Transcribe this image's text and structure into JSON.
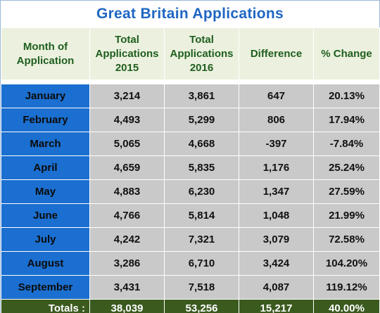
{
  "chart_data": {
    "type": "table",
    "title": "Great Britain Applications",
    "columns": [
      "Month of Application",
      "Total Applications 2015",
      "Total Applications 2016",
      "Difference",
      "% Change"
    ],
    "rows": [
      [
        "January",
        "3,214",
        "3,861",
        "647",
        "20.13%"
      ],
      [
        "February",
        "4,493",
        "5,299",
        "806",
        "17.94%"
      ],
      [
        "March",
        "5,065",
        "4,668",
        "-397",
        "-7.84%"
      ],
      [
        "April",
        "4,659",
        "5,835",
        "1,176",
        "25.24%"
      ],
      [
        "May",
        "4,883",
        "6,230",
        "1,347",
        "27.59%"
      ],
      [
        "June",
        "4,766",
        "5,814",
        "1,048",
        "21.99%"
      ],
      [
        "July",
        "4,242",
        "7,321",
        "3,079",
        "72.58%"
      ],
      [
        "August",
        "3,286",
        "6,710",
        "3,424",
        "104.20%"
      ],
      [
        "September",
        "3,431",
        "7,518",
        "4,087",
        "119.12%"
      ]
    ],
    "totals": [
      "Totals :",
      "38,039",
      "53,256",
      "15,217",
      "40.00%"
    ],
    "colors": {
      "title": "#1f66c2",
      "header_bg": "#ebf1de",
      "header_text": "#1f5e1f",
      "month_bg": "#1b6fd0",
      "cell_bg": "#c9c9c9",
      "totals_bg": "#3a5a1e",
      "totals_text": "#ffffff"
    }
  }
}
